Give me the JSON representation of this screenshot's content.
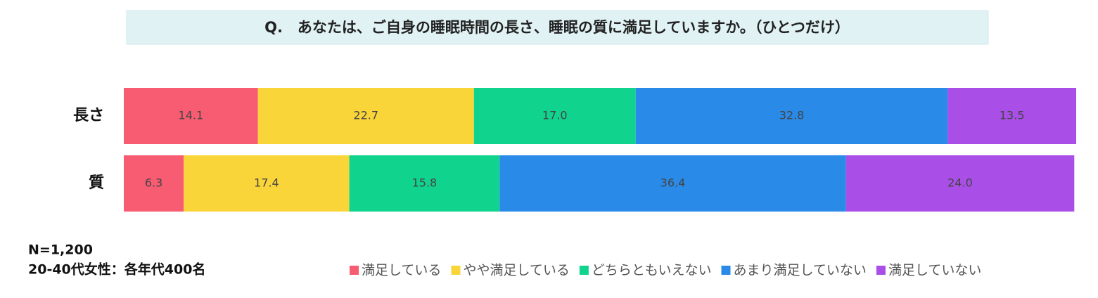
{
  "chart_data": {
    "type": "stacked-bar-horizontal",
    "title": "Q.　あなたは、ご自身の睡眠時間の長さ、睡眠の質に満足していますか。（ひとつだけ）",
    "categories": [
      "長さ",
      "質"
    ],
    "series": [
      {
        "name": "満足している",
        "color": "#f75c72",
        "values": [
          14.1,
          6.3
        ],
        "value_labels": [
          "14.1",
          "6.3"
        ]
      },
      {
        "name": "やや満足している",
        "color": "#fad53a",
        "values": [
          22.7,
          17.4
        ],
        "value_labels": [
          "22.7",
          "17.4"
        ]
      },
      {
        "name": "どちらともいえない",
        "color": "#10d48e",
        "values": [
          17.0,
          15.8
        ],
        "value_labels": [
          "17.0",
          "15.8"
        ]
      },
      {
        "name": "あまり満足していない",
        "color": "#2a8ae8",
        "values": [
          32.8,
          36.4
        ],
        "value_labels": [
          "32.8",
          "36.4"
        ]
      },
      {
        "name": "満足していない",
        "color": "#a94fe8",
        "values": [
          13.5,
          24.0
        ],
        "value_labels": [
          "13.5",
          "24.0"
        ]
      }
    ],
    "notes": [
      "N=1,200",
      "20-40代女性：各年代400名"
    ],
    "legend": "bottom-right"
  }
}
